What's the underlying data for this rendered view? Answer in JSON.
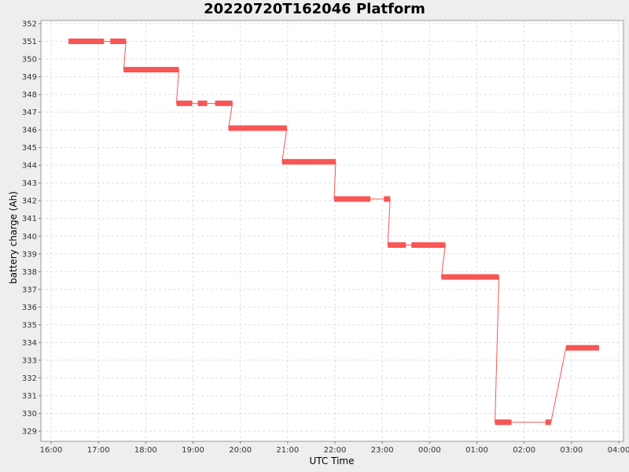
{
  "chart_data": {
    "type": "line",
    "title": "20220720T162046 Platform",
    "xlabel": "UTC Time",
    "ylabel": "battery charge (Ah)",
    "x_ticks": [
      "16:00",
      "17:00",
      "18:00",
      "19:00",
      "20:00",
      "21:00",
      "22:00",
      "23:00",
      "00:00",
      "01:00",
      "02:00",
      "03:00",
      "04:00"
    ],
    "y_ticks": [
      329,
      330,
      331,
      332,
      333,
      334,
      335,
      336,
      337,
      338,
      339,
      340,
      341,
      342,
      343,
      344,
      345,
      346,
      347,
      348,
      349,
      350,
      351,
      352
    ],
    "grid": true,
    "colors": {
      "series": "#f85555",
      "plot_bg": "#ffffff",
      "grid": "#dddddd",
      "page_bg": "#eeeeee"
    },
    "series": [
      {
        "segments": [
          {
            "start": "16:22",
            "end": "17:07",
            "value": 351.0
          },
          {
            "start": "17:15",
            "end": "17:35",
            "value": 351.0
          },
          {
            "start": "17:32",
            "end": "18:42",
            "value": 349.4
          },
          {
            "start": "18:39",
            "end": "18:59",
            "value": 347.5
          },
          {
            "start": "19:06",
            "end": "19:18",
            "value": 347.5
          },
          {
            "start": "19:28",
            "end": "19:50",
            "value": 347.5
          },
          {
            "start": "19:45",
            "end": "20:59",
            "value": 346.1
          },
          {
            "start": "20:53",
            "end": "22:01",
            "value": 344.2
          },
          {
            "start": "21:59",
            "end": "22:45",
            "value": 342.1
          },
          {
            "start": "23:02",
            "end": "23:10",
            "value": 342.1
          },
          {
            "start": "23:07",
            "end": "23:30",
            "value": 339.5
          },
          {
            "start": "23:37",
            "end": "00:20",
            "value": 339.5
          },
          {
            "start": "00:15",
            "end": "01:28",
            "value": 337.7
          },
          {
            "start": "01:23",
            "end": "01:44",
            "value": 329.5
          },
          {
            "start": "02:27",
            "end": "02:34",
            "value": 329.5
          },
          {
            "start": "02:53",
            "end": "03:35",
            "value": 333.7
          }
        ]
      }
    ]
  }
}
